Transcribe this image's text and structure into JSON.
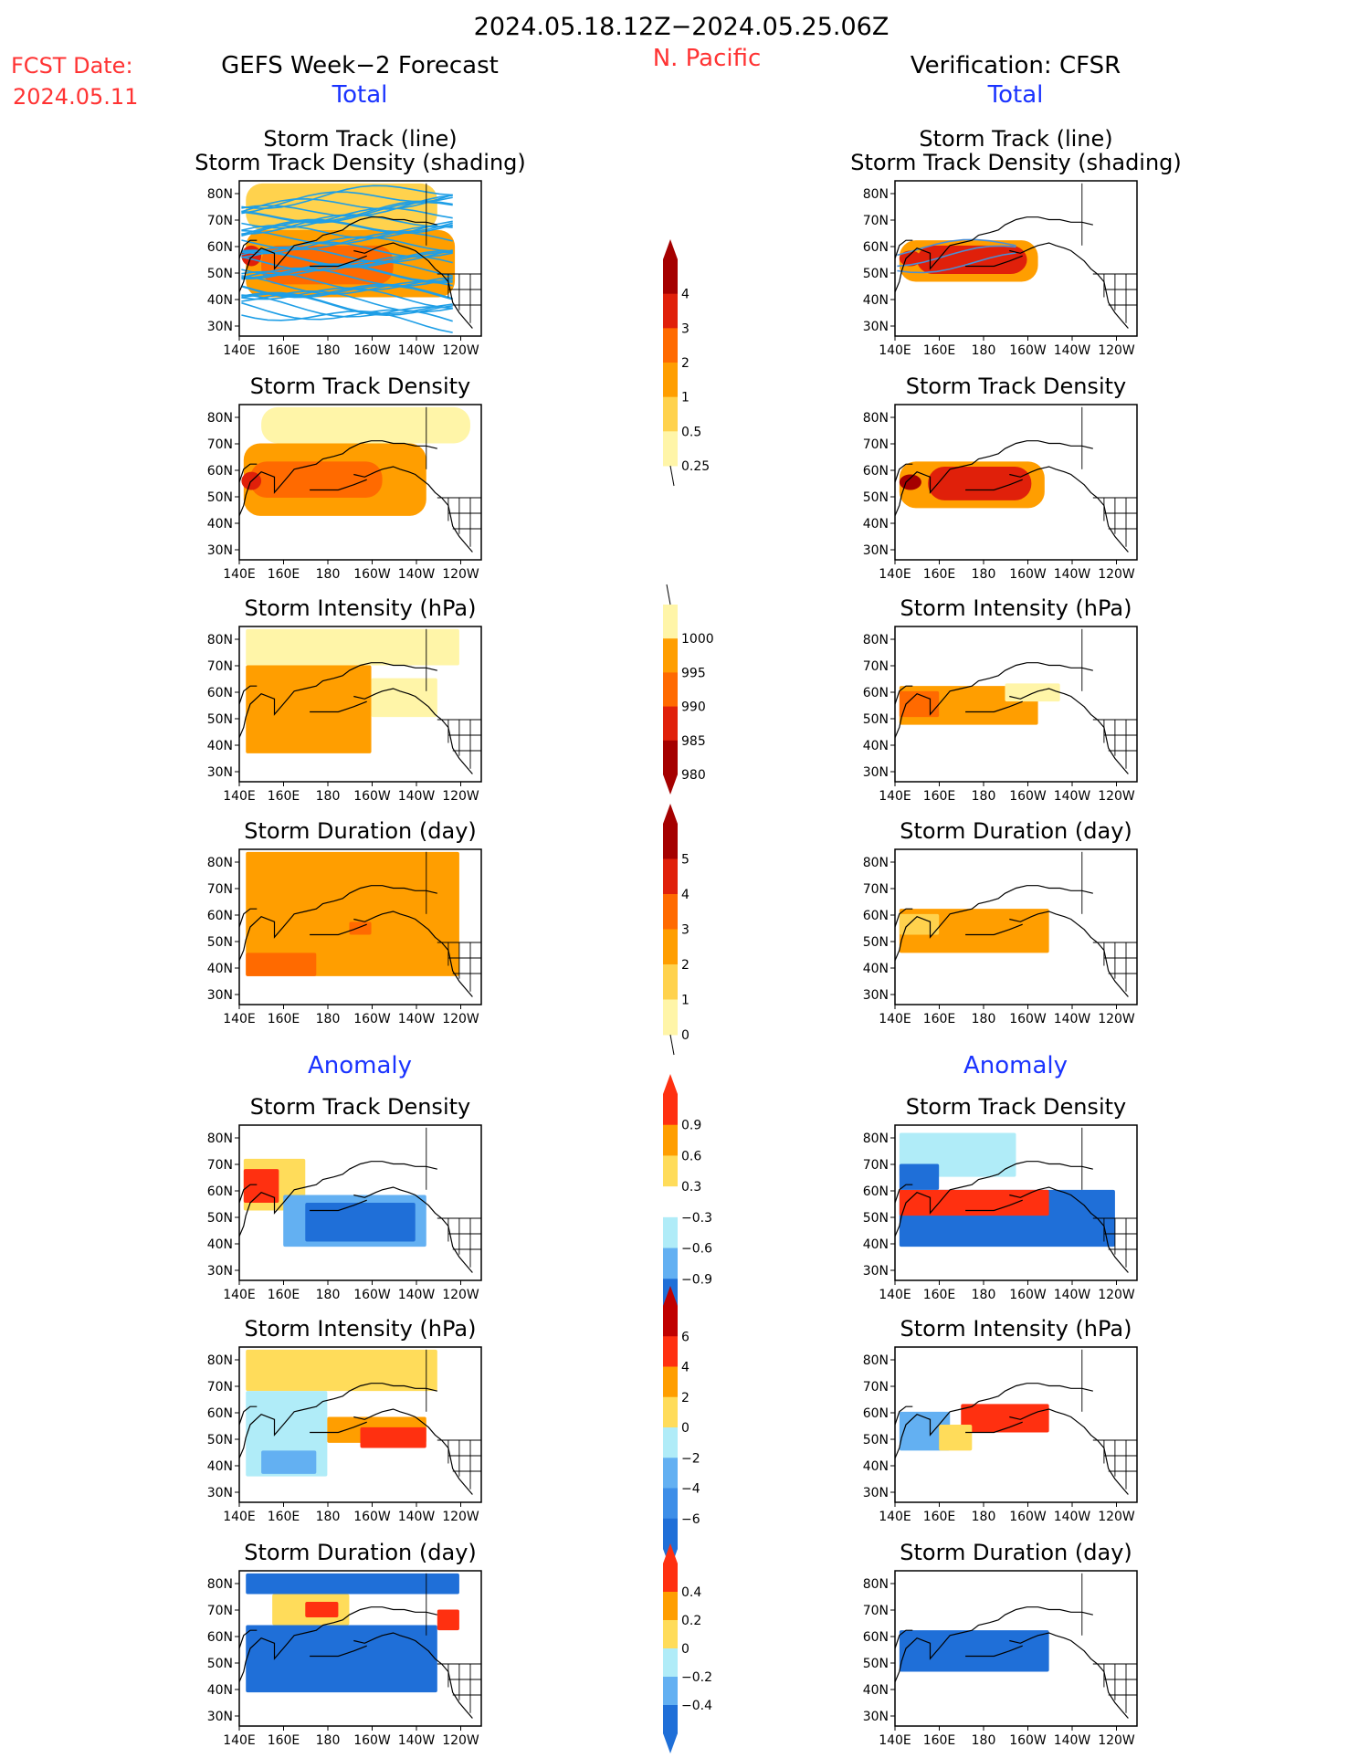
{
  "header": {
    "date_range": "2024.05.18.12Z−2024.05.25.06Z",
    "region": "N. Pacific",
    "fcst_label": "FCST Date:",
    "fcst_date": "2024.05.11",
    "left_title": "GEFS Week−2 Forecast",
    "right_title": "Verification: CFSR",
    "total_label": "Total",
    "anomaly_label": "Anomaly"
  },
  "panel_titles": {
    "track_line": "Storm Track (line)",
    "track_shading": "Storm Track Density (shading)",
    "density": "Storm Track Density",
    "intensity": "Storm Intensity (hPa)",
    "duration": "Storm Duration (day)"
  },
  "axes": {
    "lat_ticks": [
      "80N",
      "70N",
      "60N",
      "50N",
      "40N",
      "30N"
    ],
    "lon_ticks": [
      "140E",
      "160E",
      "180",
      "160W",
      "140W",
      "120W"
    ]
  },
  "colorbars": {
    "density_total": {
      "labels": [
        "4",
        "3",
        "2",
        "1",
        "0.5",
        "0.25"
      ],
      "colors": [
        "#a50000",
        "#e0200a",
        "#ff6a00",
        "#ff9e00",
        "#ffd24d",
        "#fff5a8"
      ]
    },
    "intensity_total": {
      "labels": [
        "1000",
        "995",
        "990",
        "985",
        "980"
      ],
      "colors": [
        "#fff5a8",
        "#ff9e00",
        "#ff6a00",
        "#e0200a",
        "#a50000"
      ]
    },
    "duration_total": {
      "labels": [
        "5",
        "4",
        "3",
        "2",
        "1",
        "0"
      ],
      "colors": [
        "#a50000",
        "#e0200a",
        "#ff6a00",
        "#ff9e00",
        "#ffd24d",
        "#fff5a8"
      ]
    },
    "density_anom": {
      "labels": [
        "0.9",
        "0.6",
        "0.3",
        "−0.3",
        "−0.6",
        "−0.9"
      ],
      "colors": [
        "#ff3010",
        "#ff9e00",
        "#ffdc5a",
        "#ffffff",
        "#b0ecf8",
        "#63b0f2",
        "#1f6fd8"
      ]
    },
    "intensity_anom": {
      "labels": [
        "6",
        "4",
        "2",
        "0",
        "−2",
        "−4",
        "−6"
      ],
      "colors": [
        "#c00000",
        "#ff3010",
        "#ff9e00",
        "#ffdc5a",
        "#b0ecf8",
        "#63b0f2",
        "#3d8ee8",
        "#1f6fd8"
      ]
    },
    "duration_anom": {
      "labels": [
        "0.4",
        "0.2",
        "0",
        "−0.2",
        "−0.4"
      ],
      "colors": [
        "#ff3010",
        "#ff9e00",
        "#ffdc5a",
        "#b0ecf8",
        "#63b0f2",
        "#1f6fd8"
      ]
    }
  },
  "chart_data": [
    {
      "type": "heatmap",
      "id": "gefs-track",
      "title": "Storm Track (line)",
      "subtitle": "Storm Track Density (shading)",
      "xlabel": "",
      "ylabel": "",
      "xlim": [
        "140E",
        "110W"
      ],
      "ylim": [
        "25N",
        "85N"
      ],
      "regions": [
        {
          "lon": [
            143,
            230
          ],
          "lat": [
            66,
            84
          ],
          "level": 1
        },
        {
          "lon": [
            143,
            238
          ],
          "lat": [
            40,
            66
          ],
          "level": 2
        },
        {
          "lon": [
            150,
            210
          ],
          "lat": [
            45,
            60
          ],
          "level": 3
        },
        {
          "lon": [
            141,
            150
          ],
          "lat": [
            52,
            60
          ],
          "level": 4
        }
      ],
      "tracks": "many blue storm track lines spanning 140E-120W, 35N-80N"
    },
    {
      "type": "heatmap",
      "id": "cfsr-track",
      "title": "Storm Track (line)",
      "subtitle": "Storm Track Density (shading)",
      "xlim": [
        "140E",
        "110W"
      ],
      "ylim": [
        "25N",
        "85N"
      ],
      "regions": [
        {
          "lon": [
            142,
            205
          ],
          "lat": [
            46,
            62
          ],
          "level": 2
        },
        {
          "lon": [
            150,
            200
          ],
          "lat": [
            49,
            60
          ],
          "level": 4
        },
        {
          "lon": [
            142,
            152
          ],
          "lat": [
            52,
            58
          ],
          "level": 4
        }
      ]
    },
    {
      "type": "heatmap",
      "id": "gefs-density",
      "title": "Storm Track Density",
      "regions": [
        {
          "lon": [
            150,
            245
          ],
          "lat": [
            70,
            84
          ],
          "level": 0
        },
        {
          "lon": [
            142,
            225
          ],
          "lat": [
            42,
            70
          ],
          "level": 2
        },
        {
          "lon": [
            145,
            205
          ],
          "lat": [
            49,
            63
          ],
          "level": 3
        },
        {
          "lon": [
            141,
            150
          ],
          "lat": [
            52,
            59
          ],
          "level": 4
        }
      ]
    },
    {
      "type": "heatmap",
      "id": "cfsr-density",
      "title": "Storm Track Density",
      "regions": [
        {
          "lon": [
            142,
            208
          ],
          "lat": [
            45,
            63
          ],
          "level": 2
        },
        {
          "lon": [
            155,
            202
          ],
          "lat": [
            48,
            61
          ],
          "level": 4
        },
        {
          "lon": [
            142,
            152
          ],
          "lat": [
            52,
            58
          ],
          "level": 5
        }
      ]
    },
    {
      "type": "heatmap",
      "id": "gefs-intensity",
      "title": "Storm Intensity (hPa)",
      "regions": [
        {
          "lon": [
            143,
            240
          ],
          "lat": [
            70,
            84
          ],
          "level": 0
        },
        {
          "lon": [
            143,
            200
          ],
          "lat": [
            36,
            70
          ],
          "level": 1
        },
        {
          "lon": [
            200,
            230
          ],
          "lat": [
            50,
            65
          ],
          "level": 0
        }
      ]
    },
    {
      "type": "heatmap",
      "id": "cfsr-intensity",
      "title": "Storm Intensity (hPa)",
      "regions": [
        {
          "lon": [
            142,
            205
          ],
          "lat": [
            47,
            62
          ],
          "level": 1
        },
        {
          "lon": [
            142,
            160
          ],
          "lat": [
            50,
            60
          ],
          "level": 2
        },
        {
          "lon": [
            190,
            215
          ],
          "lat": [
            56,
            63
          ],
          "level": 0
        }
      ]
    },
    {
      "type": "heatmap",
      "id": "gefs-duration",
      "title": "Storm Duration (day)",
      "regions": [
        {
          "lon": [
            143,
            240
          ],
          "lat": [
            36,
            84
          ],
          "level": 2
        },
        {
          "lon": [
            143,
            175
          ],
          "lat": [
            36,
            45
          ],
          "level": 3
        },
        {
          "lon": [
            190,
            200
          ],
          "lat": [
            52,
            57
          ],
          "level": 3
        }
      ]
    },
    {
      "type": "heatmap",
      "id": "cfsr-duration",
      "title": "Storm Duration (day)",
      "regions": [
        {
          "lon": [
            142,
            210
          ],
          "lat": [
            45,
            62
          ],
          "level": 2
        },
        {
          "lon": [
            142,
            160
          ],
          "lat": [
            52,
            60
          ],
          "level": 1
        }
      ]
    },
    {
      "type": "heatmap",
      "id": "gefs-density-anom",
      "title": "Storm Track Density",
      "regions": [
        {
          "lon": [
            142,
            170
          ],
          "lat": [
            52,
            72
          ],
          "level": 1
        },
        {
          "lon": [
            142,
            158
          ],
          "lat": [
            55,
            68
          ],
          "level": 3
        },
        {
          "lon": [
            160,
            225
          ],
          "lat": [
            38,
            58
          ],
          "level": -2
        },
        {
          "lon": [
            170,
            220
          ],
          "lat": [
            40,
            55
          ],
          "level": -3
        }
      ]
    },
    {
      "type": "heatmap",
      "id": "cfsr-density-anom",
      "title": "Storm Track Density",
      "regions": [
        {
          "lon": [
            142,
            195
          ],
          "lat": [
            65,
            82
          ],
          "level": -1
        },
        {
          "lon": [
            142,
            240
          ],
          "lat": [
            38,
            60
          ],
          "level": -3
        },
        {
          "lon": [
            142,
            210
          ],
          "lat": [
            50,
            60
          ],
          "level": 3
        },
        {
          "lon": [
            142,
            160
          ],
          "lat": [
            60,
            70
          ],
          "level": -3
        }
      ]
    },
    {
      "type": "heatmap",
      "id": "gefs-intensity-anom",
      "title": "Storm Intensity (hPa)",
      "regions": [
        {
          "lon": [
            143,
            230
          ],
          "lat": [
            68,
            84
          ],
          "level": 1
        },
        {
          "lon": [
            143,
            180
          ],
          "lat": [
            35,
            68
          ],
          "level": 0
        },
        {
          "lon": [
            180,
            225
          ],
          "lat": [
            48,
            58
          ],
          "level": 2
        },
        {
          "lon": [
            195,
            225
          ],
          "lat": [
            46,
            54
          ],
          "level": 3
        },
        {
          "lon": [
            150,
            175
          ],
          "lat": [
            36,
            45
          ],
          "level": -2
        }
      ]
    },
    {
      "type": "heatmap",
      "id": "cfsr-intensity-anom",
      "title": "Storm Intensity (hPa)",
      "regions": [
        {
          "lon": [
            142,
            165
          ],
          "lat": [
            45,
            60
          ],
          "level": -2
        },
        {
          "lon": [
            170,
            210
          ],
          "lat": [
            52,
            63
          ],
          "level": 3
        },
        {
          "lon": [
            160,
            175
          ],
          "lat": [
            45,
            55
          ],
          "level": 1
        }
      ]
    },
    {
      "type": "heatmap",
      "id": "gefs-duration-anom",
      "title": "Storm Duration (day)",
      "regions": [
        {
          "lon": [
            143,
            240
          ],
          "lat": [
            76,
            84
          ],
          "level": -3
        },
        {
          "lon": [
            143,
            230
          ],
          "lat": [
            38,
            64
          ],
          "level": -3
        },
        {
          "lon": [
            155,
            190
          ],
          "lat": [
            64,
            76
          ],
          "level": 1
        },
        {
          "lon": [
            170,
            185
          ],
          "lat": [
            67,
            73
          ],
          "level": 3
        },
        {
          "lon": [
            230,
            240
          ],
          "lat": [
            62,
            70
          ],
          "level": 3
        }
      ]
    },
    {
      "type": "heatmap",
      "id": "cfsr-duration-anom",
      "title": "Storm Duration (day)",
      "regions": [
        {
          "lon": [
            142,
            210
          ],
          "lat": [
            46,
            62
          ],
          "level": -3
        }
      ]
    }
  ]
}
